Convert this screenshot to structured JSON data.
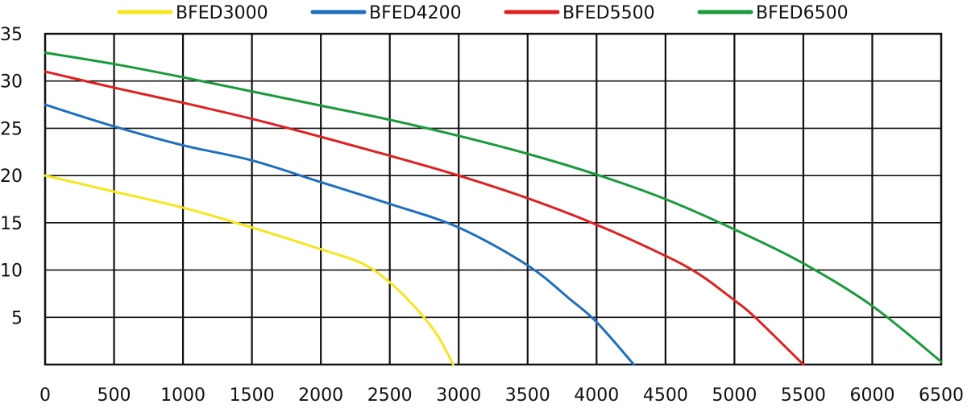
{
  "chart_data": {
    "type": "line",
    "title": "",
    "xlabel": "",
    "ylabel": "",
    "xlim": [
      0,
      6500
    ],
    "ylim": [
      0,
      35
    ],
    "grid": true,
    "legend_position": "top",
    "x_ticks": [
      "0",
      "500",
      "1000",
      "1500",
      "2000",
      "2500",
      "3000",
      "3500",
      "4000",
      "4500",
      "5000",
      "5500",
      "6000",
      "6500"
    ],
    "y_ticks": [
      "5",
      "10",
      "15",
      "20",
      "25",
      "30",
      "35"
    ],
    "series": [
      {
        "name": "BFED3000",
        "color": "#f5e61e",
        "points": [
          [
            0,
            20
          ],
          [
            500,
            18.3
          ],
          [
            1000,
            16.6
          ],
          [
            1500,
            14.5
          ],
          [
            2000,
            12.2
          ],
          [
            2300,
            10.7
          ],
          [
            2500,
            8.7
          ],
          [
            2700,
            5.8
          ],
          [
            2850,
            3.0
          ],
          [
            2960,
            0
          ]
        ]
      },
      {
        "name": "BFED4200",
        "color": "#1f6fbf",
        "points": [
          [
            0,
            27.5
          ],
          [
            500,
            25.2
          ],
          [
            1000,
            23.2
          ],
          [
            1500,
            21.6
          ],
          [
            2000,
            19.3
          ],
          [
            2500,
            17.0
          ],
          [
            3000,
            14.5
          ],
          [
            3500,
            10.5
          ],
          [
            3800,
            7.0
          ],
          [
            4000,
            4.5
          ],
          [
            4270,
            0
          ]
        ]
      },
      {
        "name": "BFED5500",
        "color": "#e02020",
        "points": [
          [
            0,
            31.0
          ],
          [
            500,
            29.3
          ],
          [
            1000,
            27.7
          ],
          [
            1500,
            26.0
          ],
          [
            2000,
            24.1
          ],
          [
            2500,
            22.1
          ],
          [
            3000,
            20.0
          ],
          [
            3500,
            17.6
          ],
          [
            4000,
            14.8
          ],
          [
            4500,
            11.5
          ],
          [
            4750,
            9.5
          ],
          [
            5000,
            6.8
          ],
          [
            5150,
            5.0
          ],
          [
            5500,
            0
          ]
        ]
      },
      {
        "name": "BFED6500",
        "color": "#1a9a3a",
        "points": [
          [
            0,
            33.0
          ],
          [
            500,
            31.8
          ],
          [
            1000,
            30.4
          ],
          [
            1500,
            28.9
          ],
          [
            2000,
            27.4
          ],
          [
            2500,
            25.9
          ],
          [
            3000,
            24.2
          ],
          [
            3500,
            22.3
          ],
          [
            4000,
            20.1
          ],
          [
            4500,
            17.5
          ],
          [
            5000,
            14.3
          ],
          [
            5500,
            10.7
          ],
          [
            6000,
            6.2
          ],
          [
            6500,
            0.3
          ]
        ]
      }
    ]
  }
}
